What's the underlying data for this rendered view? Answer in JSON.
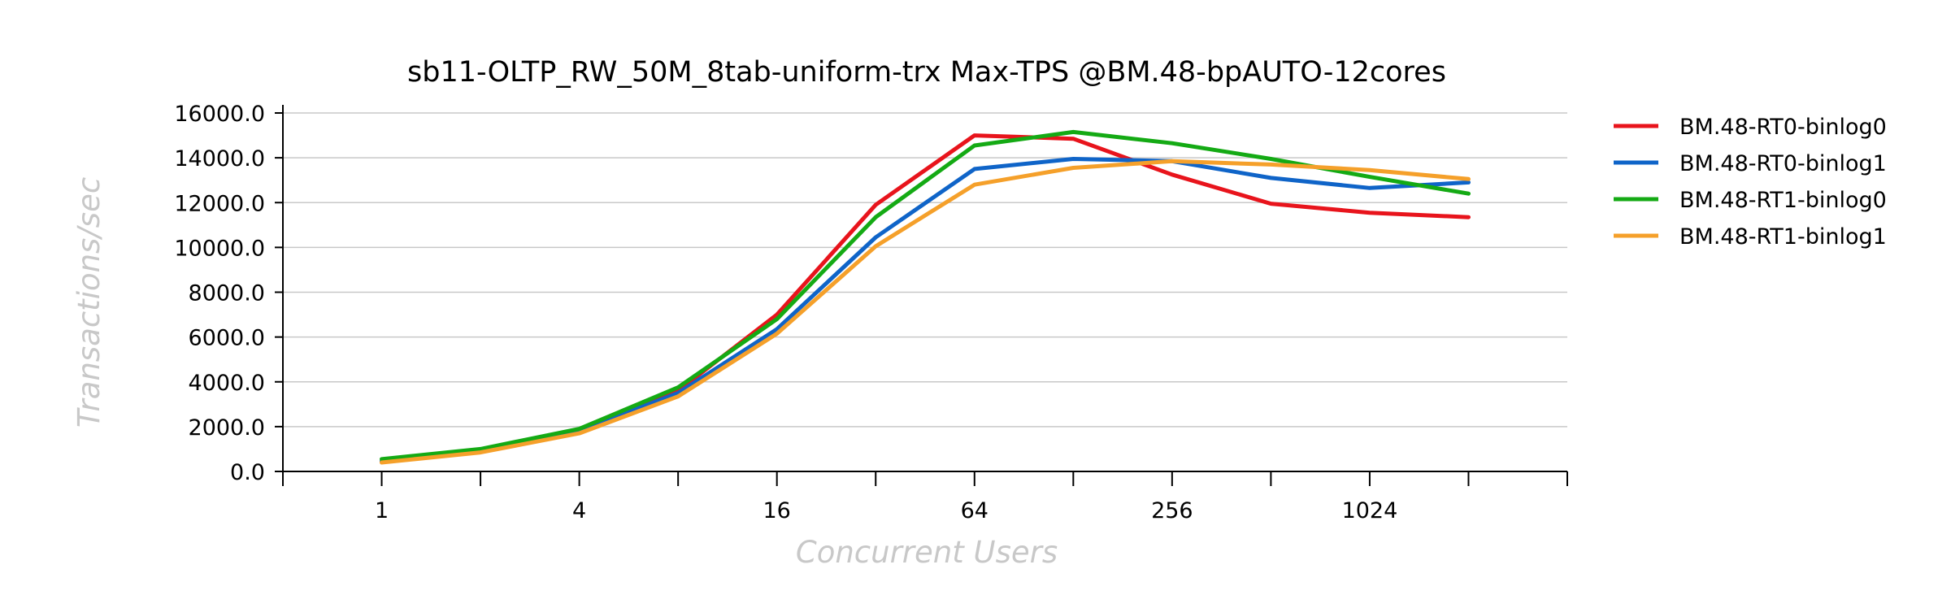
{
  "chart_data": {
    "type": "line",
    "title": "sb11-OLTP_RW_50M_8tab-uniform-trx Max-TPS @BM.48-bpAUTO-12cores",
    "xlabel": "Concurrent Users",
    "ylabel": "Transactions/sec",
    "x": [
      1,
      2,
      4,
      8,
      16,
      32,
      64,
      128,
      256,
      512,
      1024,
      2048
    ],
    "x_scale": "log2",
    "x_tick_labels": [
      "1",
      "",
      "4",
      "",
      "16",
      "",
      "64",
      "",
      "256",
      "",
      "1024",
      ""
    ],
    "ylim": [
      0,
      16000
    ],
    "y_ticks": [
      0,
      2000,
      4000,
      6000,
      8000,
      10000,
      12000,
      14000,
      16000
    ],
    "y_tick_labels": [
      "0.0",
      "2000.0",
      "4000.0",
      "6000.0",
      "8000.0",
      "10000.0",
      "12000.0",
      "14000.0",
      "16000.0"
    ],
    "grid": true,
    "legend_position": "right",
    "series": [
      {
        "name": "BM.48-RT0-binlog0",
        "color": "#e8141c",
        "values": [
          450,
          900,
          1800,
          3600,
          7000,
          11900,
          15000,
          14850,
          13250,
          11950,
          11550,
          11350
        ]
      },
      {
        "name": "BM.48-RT0-binlog1",
        "color": "#0f64c8",
        "values": [
          450,
          900,
          1800,
          3500,
          6350,
          10450,
          13500,
          13950,
          13850,
          13100,
          12650,
          12900
        ]
      },
      {
        "name": "BM.48-RT1-binlog0",
        "color": "#14aa14",
        "values": [
          550,
          1000,
          1900,
          3750,
          6800,
          11350,
          14550,
          15150,
          14650,
          13950,
          13150,
          12400
        ]
      },
      {
        "name": "BM.48-RT1-binlog1",
        "color": "#f5a02a",
        "values": [
          400,
          850,
          1700,
          3350,
          6150,
          10050,
          12800,
          13550,
          13850,
          13700,
          13450,
          13050
        ]
      }
    ]
  }
}
